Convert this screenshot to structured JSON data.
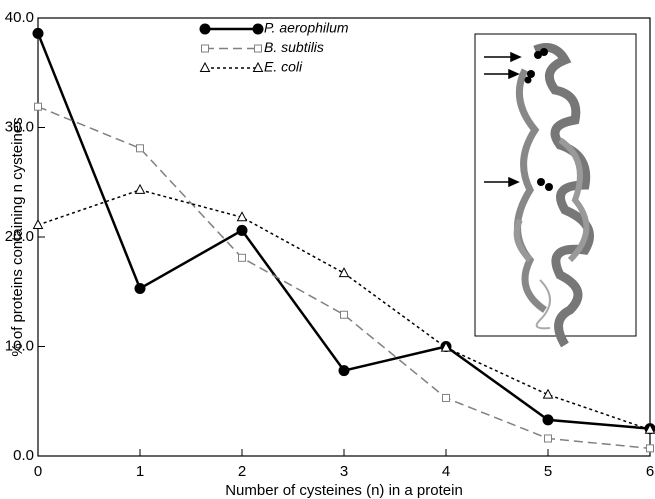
{
  "chart_data": {
    "type": "line",
    "x_label": "Number of cysteines (n) in a protein",
    "y_label": "% of proteins containing n cysteines",
    "x": [
      0,
      1,
      2,
      3,
      4,
      5,
      6
    ],
    "xlim": [
      0,
      6
    ],
    "xticks": [
      0,
      1,
      2,
      3,
      4,
      5,
      6
    ],
    "ylim": [
      0,
      40
    ],
    "yticks": [
      {
        "value": 0,
        "label": "0.0"
      },
      {
        "value": 10,
        "label": "10.0"
      },
      {
        "value": 20,
        "label": "20.0"
      },
      {
        "value": 30,
        "label": "30.0"
      },
      {
        "value": 40,
        "label": "40.0"
      }
    ],
    "grid": false,
    "legend": "top-left",
    "series": [
      {
        "name": "P. aerophilum",
        "color": "#000000",
        "line_style": "solid",
        "marker": "circle",
        "values": [
          38.6,
          15.3,
          20.6,
          7.8,
          10.0,
          3.3,
          2.5
        ]
      },
      {
        "name": "B. subtilis",
        "color": "#808080",
        "line_style": "dashed",
        "marker": "square",
        "values": [
          31.9,
          28.1,
          18.1,
          12.9,
          5.3,
          1.6,
          0.7
        ]
      },
      {
        "name": "E. coli",
        "color": "#000000",
        "line_style": "dotted",
        "marker": "triangle",
        "values": [
          21.1,
          24.3,
          21.8,
          16.7,
          9.9,
          5.6,
          2.4
        ]
      }
    ]
  }
}
